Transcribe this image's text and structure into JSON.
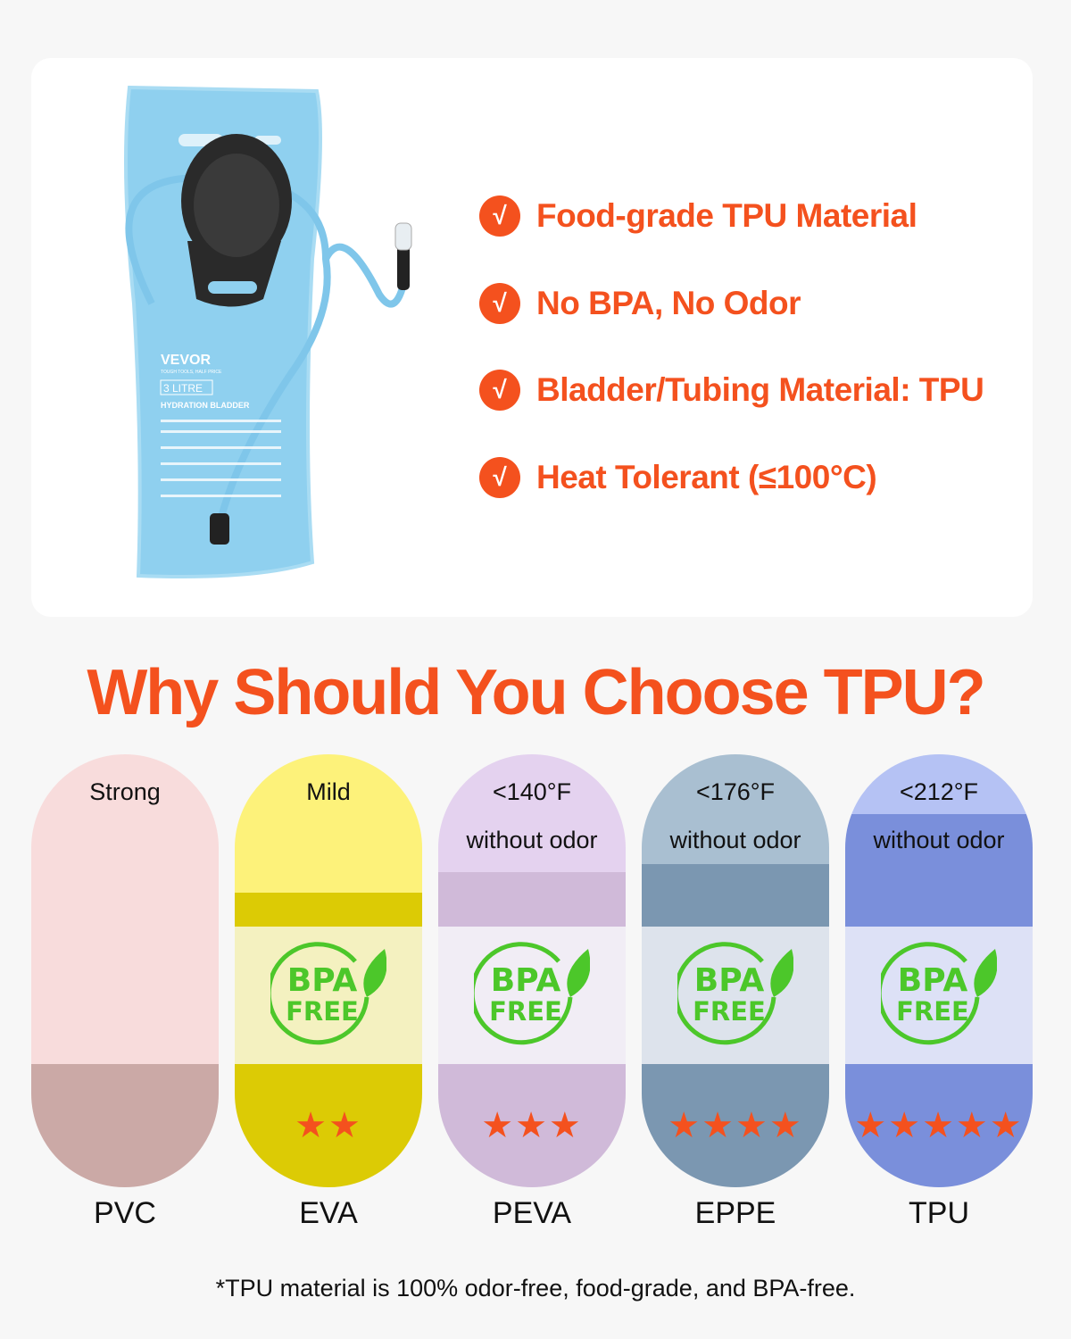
{
  "product": {
    "brand": "VEVOR",
    "tagline": "TOUGH TOOLS, HALF PRICE",
    "capacity": "3 LITRE",
    "name": "HYDRATION BLADDER"
  },
  "features": [
    "Food-grade TPU Material",
    "No BPA, No Odor",
    "Bladder/Tubing Material: TPU",
    "Heat Tolerant (≤100°C)"
  ],
  "check_icon": "√",
  "title": "Why Should You Choose TPU?",
  "accent": "#f4511e",
  "badge": {
    "line1": "BPA",
    "line2": "FREE",
    "color": "#4cc72a"
  },
  "materials": [
    {
      "name": "PVC",
      "odor": "Strong",
      "temp": "",
      "stars": 0,
      "colors": [
        "#f8dcdc",
        "#f8dcdc",
        "#f8dcdc",
        "#cba9a6"
      ]
    },
    {
      "name": "EVA",
      "odor": "Mild",
      "temp": "",
      "stars": 2,
      "colors": [
        "#fdf27a",
        "#dccb05",
        "#f4f1c0",
        "#dccb05"
      ]
    },
    {
      "name": "PEVA",
      "odor": "without odor",
      "temp": "<140°F",
      "stars": 3,
      "colors": [
        "#e4d2ef",
        "#d0bad9",
        "#f1edf5",
        "#d0bad9"
      ]
    },
    {
      "name": "EPPE",
      "odor": "without odor",
      "temp": "<176°F",
      "stars": 4,
      "colors": [
        "#a9bfd1",
        "#7b97b1",
        "#dde3ec",
        "#7b97b1"
      ]
    },
    {
      "name": "TPU",
      "odor": "without odor",
      "temp": "<212°F",
      "stars": 5,
      "colors": [
        "#b5c2f4",
        "#7a8fdb",
        "#dde1f6",
        "#7a8fdb"
      ]
    }
  ],
  "footnote": "*TPU material is 100% odor-free, food-grade, and BPA-free."
}
